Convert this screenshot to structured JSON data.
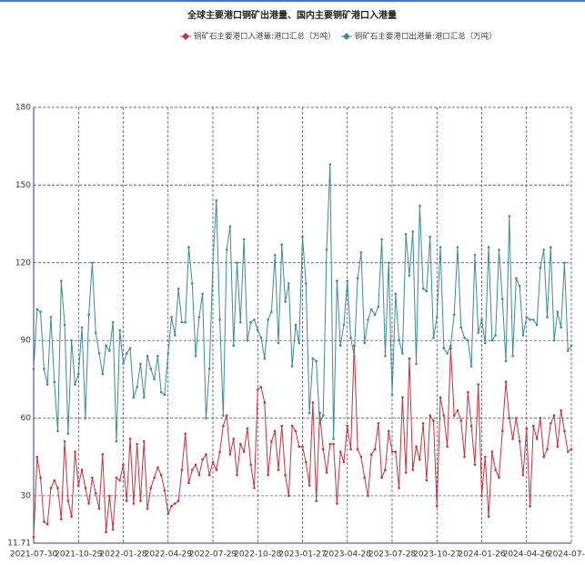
{
  "chart_data": {
    "type": "line",
    "title": "全球主要港口铜矿出港量、国内主要铜矿港口入港量",
    "categories": [
      "2021-07-30",
      null,
      null,
      null,
      null,
      null,
      null,
      null,
      null,
      null,
      null,
      null,
      null,
      "2021-10-29",
      null,
      null,
      null,
      null,
      null,
      null,
      null,
      null,
      null,
      null,
      null,
      null,
      "2022-01-28",
      null,
      null,
      null,
      null,
      null,
      null,
      null,
      null,
      null,
      null,
      null,
      null,
      "2022-04-29",
      null,
      null,
      null,
      null,
      null,
      null,
      null,
      null,
      null,
      null,
      null,
      null,
      "2022-07-29",
      null,
      null,
      null,
      null,
      null,
      null,
      null,
      null,
      null,
      null,
      null,
      null,
      "2022-10-28",
      null,
      null,
      null,
      null,
      null,
      null,
      null,
      null,
      null,
      null,
      null,
      null,
      "2023-01-27",
      null,
      null,
      null,
      null,
      null,
      null,
      null,
      null,
      null,
      null,
      null,
      null,
      "2023-04-28",
      null,
      null,
      null,
      null,
      null,
      null,
      null,
      null,
      null,
      null,
      null,
      null,
      "2023-07-28",
      null,
      null,
      null,
      null,
      null,
      null,
      null,
      null,
      null,
      null,
      null,
      null,
      "2023-10-27",
      null,
      null,
      null,
      null,
      null,
      null,
      null,
      null,
      null,
      null,
      null,
      null,
      "2024-01-26",
      null,
      null,
      null,
      null,
      null,
      null,
      null,
      null,
      null,
      null,
      null,
      null,
      "2024-04-26",
      null,
      null,
      null,
      null,
      null,
      null,
      null,
      null,
      null,
      null,
      null,
      null,
      "2024-07-26"
    ],
    "series": [
      {
        "name": "铜矿石主要港口入港量:港口汇总（万吨）",
        "color": "#c8323c",
        "values": [
          14,
          45,
          37,
          20,
          19,
          33,
          36,
          33,
          21,
          51,
          28,
          22,
          47,
          34,
          40,
          33,
          27,
          37,
          31,
          25,
          46,
          16,
          30,
          17,
          37,
          36,
          42,
          28,
          52,
          27,
          50,
          28,
          51,
          25,
          33,
          37,
          41,
          38,
          32,
          23,
          26,
          27,
          28,
          40,
          54,
          35,
          40,
          42,
          38,
          44,
          46,
          38,
          43,
          40,
          47,
          57,
          61,
          46,
          52,
          38,
          50,
          47,
          56,
          42,
          33,
          71,
          72,
          66,
          38,
          51,
          55,
          40,
          57,
          38,
          30,
          57,
          55,
          49,
          49,
          43,
          34,
          66,
          28,
          62,
          48,
          39,
          50,
          50,
          27,
          47,
          43,
          57,
          48,
          88,
          48,
          45,
          37,
          30,
          46,
          48,
          58,
          37,
          40,
          55,
          47,
          47,
          33,
          68,
          39,
          83,
          40,
          49,
          44,
          58,
          36,
          61,
          59,
          26,
          68,
          61,
          49,
          87,
          61,
          63,
          59,
          45,
          70,
          57,
          42,
          73,
          30,
          45,
          22,
          47,
          40,
          37,
          55,
          74,
          60,
          52,
          60,
          51,
          38,
          56,
          26,
          57,
          52,
          60,
          45,
          48,
          58,
          61,
          49,
          63,
          55,
          47,
          48
        ]
      },
      {
        "name": "铜矿石主要港口出港量:港口汇总（万吨）",
        "color": "#3e8a96",
        "values": [
          79,
          102,
          101,
          79,
          73,
          99,
          74,
          55,
          113,
          96,
          54,
          90,
          73,
          77,
          95,
          60,
          100,
          120,
          93,
          85,
          77,
          88,
          86,
          97,
          51,
          94,
          81,
          85,
          87,
          68,
          72,
          81,
          68,
          84,
          79,
          75,
          84,
          70,
          69,
          85,
          99,
          92,
          110,
          97,
          97,
          126,
          112,
          84,
          99,
          108,
          60,
          79,
          120,
          144,
          98,
          61,
          125,
          134,
          88,
          120,
          97,
          129,
          90,
          97,
          98,
          94,
          91,
          83,
          98,
          101,
          123,
          89,
          127,
          105,
          112,
          80,
          96,
          89,
          130,
          112,
          62,
          83,
          82,
          58,
          61,
          125,
          158,
          52,
          113,
          88,
          96,
          113,
          91,
          84,
          114,
          124,
          89,
          98,
          102,
          100,
          103,
          129,
          84,
          120,
          69,
          108,
          90,
          85,
          131,
          115,
          132,
          81,
          142,
          110,
          109,
          130,
          91,
          99,
          126,
          87,
          85,
          88,
          100,
          126,
          95,
          91,
          90,
          80,
          123,
          93,
          98,
          89,
          126,
          90,
          92,
          125,
          106,
          82,
          138,
          84,
          114,
          111,
          92,
          99,
          98,
          98,
          96,
          118,
          125,
          99,
          126,
          90,
          101,
          95,
          120,
          86,
          88
        ]
      }
    ],
    "ylim": [
      11.71,
      180
    ],
    "yticks": [
      11.71,
      30,
      60,
      90,
      120,
      150,
      180
    ],
    "grid": true
  }
}
